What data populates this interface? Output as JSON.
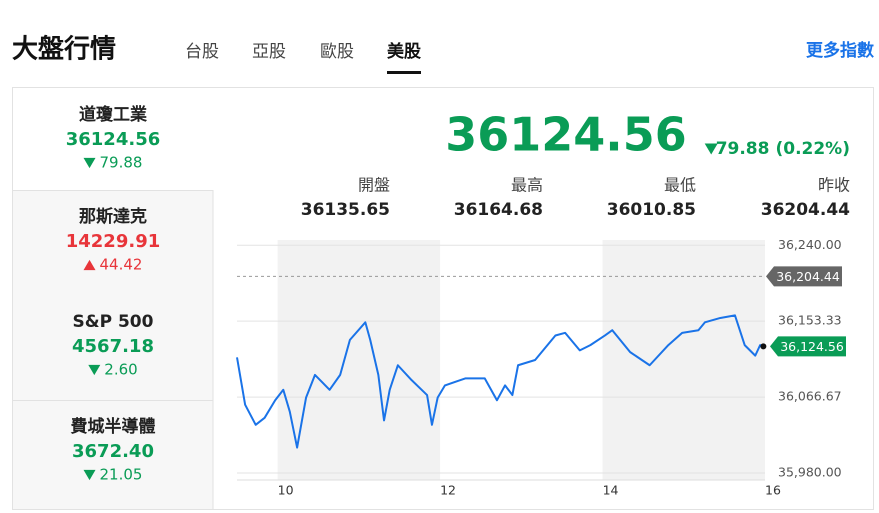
{
  "header": {
    "title": "大盤行情",
    "more_link": "更多指數"
  },
  "tabs": {
    "items": [
      "台股",
      "亞股",
      "歐股",
      "美股"
    ],
    "selected": 3
  },
  "indices": {
    "selected": 0,
    "items": [
      {
        "name": "道瓊工業",
        "value": "36124.56",
        "change": "79.88",
        "direction": "down"
      },
      {
        "name": "那斯達克",
        "value": "14229.91",
        "change": "44.42",
        "direction": "up"
      },
      {
        "name": "S&P 500",
        "value": "4567.18",
        "change": "2.60",
        "direction": "down"
      },
      {
        "name": "費城半導體",
        "value": "3672.40",
        "change": "21.05",
        "direction": "down"
      }
    ]
  },
  "detail": {
    "value": "36124.56",
    "change": "79.88",
    "change_percent": "(0.22%)",
    "direction": "down",
    "stats": [
      {
        "label": "開盤",
        "value": "36135.65"
      },
      {
        "label": "最高",
        "value": "36164.68"
      },
      {
        "label": "最低",
        "value": "36010.85"
      },
      {
        "label": "昨收",
        "value": "36204.44"
      }
    ]
  },
  "chart_data": {
    "type": "line",
    "x": [
      9.5,
      9.6,
      9.73,
      9.84,
      9.97,
      10.07,
      10.15,
      10.24,
      10.35,
      10.46,
      10.64,
      10.77,
      10.89,
      11.08,
      11.14,
      11.24,
      11.31,
      11.38,
      11.48,
      11.65,
      11.84,
      11.9,
      11.97,
      12.06,
      12.31,
      12.55,
      12.7,
      12.8,
      12.89,
      12.96,
      13.17,
      13.42,
      13.54,
      13.72,
      13.85,
      14.03,
      14.12,
      14.34,
      14.58,
      14.81,
      14.98,
      15.18,
      15.26,
      15.45,
      15.63,
      15.75,
      15.88,
      15.94,
      15.98
    ],
    "series": [
      {
        "name": "道瓊工業",
        "color": "#1a73e8",
        "values": [
          36112,
          36058,
          36035,
          36043,
          36063,
          36075,
          36050,
          36009,
          36066,
          36092,
          36075,
          36092,
          36132,
          36152,
          36132,
          36092,
          36040,
          36075,
          36103,
          36086,
          36069,
          36035,
          36066,
          36080,
          36088,
          36088,
          36063,
          36080,
          36069,
          36103,
          36109,
          36137,
          36140,
          36120,
          36126,
          36137,
          36143,
          36118,
          36103,
          36126,
          36140,
          36143,
          36152,
          36157,
          36160,
          36126,
          36114,
          36126,
          36124.56
        ],
        "last_label": "36,124.56"
      }
    ],
    "xlim": [
      9.5,
      16
    ],
    "xticks": [
      10,
      12,
      14,
      16
    ],
    "ylim": [
      35972,
      36246
    ],
    "yticks": [
      {
        "value": 35980,
        "label": "35,980.00"
      },
      {
        "value": 36066.67,
        "label": "36,066.67"
      },
      {
        "value": 36153.33,
        "label": "36,153.33"
      },
      {
        "value": 36240,
        "label": "36,240.00"
      }
    ],
    "reference_line": {
      "value": 36204.44,
      "label": "36,204.44"
    },
    "grid": true
  }
}
